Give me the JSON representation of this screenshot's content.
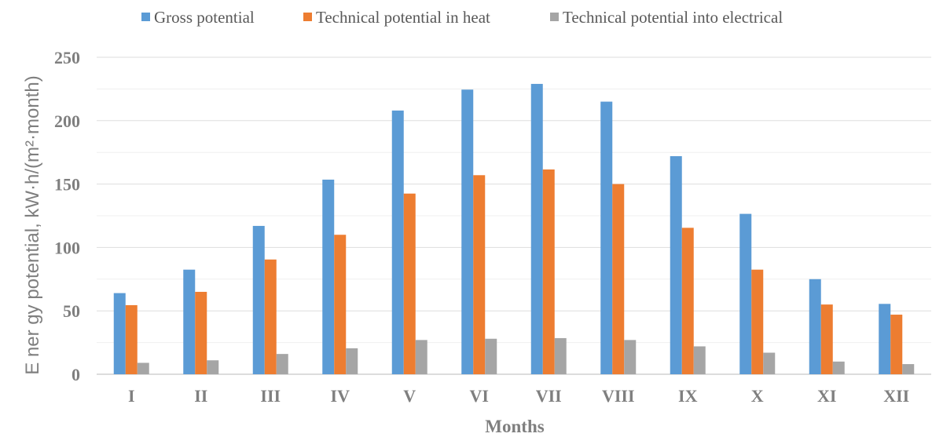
{
  "chart_data": {
    "type": "bar",
    "title": "",
    "xlabel": "Months",
    "ylabel": "E ner gy potential, kW·h/(m²·month)",
    "ylim": [
      0,
      250
    ],
    "yticks": [
      0,
      50,
      100,
      150,
      200,
      250
    ],
    "grid": true,
    "legend_position": "top",
    "categories": [
      "I",
      "II",
      "III",
      "IV",
      "V",
      "VI",
      "VII",
      "VIII",
      "IX",
      "X",
      "XI",
      "XII"
    ],
    "series": [
      {
        "name": "Gross potential",
        "color": "#5b9bd5",
        "values": [
          64,
          82.5,
          117,
          153.5,
          208,
          224.5,
          229,
          215,
          172,
          126.5,
          75,
          55.5
        ]
      },
      {
        "name": "Technical potential in heat",
        "color": "#ed7d31",
        "values": [
          54.5,
          65,
          90.5,
          110,
          142.5,
          157,
          161.5,
          150,
          115.5,
          82.5,
          55,
          47
        ]
      },
      {
        "name": "Technical potential into electrical",
        "color": "#a5a5a5",
        "values": [
          9,
          11,
          16,
          20.5,
          27,
          28,
          28.5,
          27,
          22,
          17,
          10,
          8
        ]
      }
    ]
  }
}
